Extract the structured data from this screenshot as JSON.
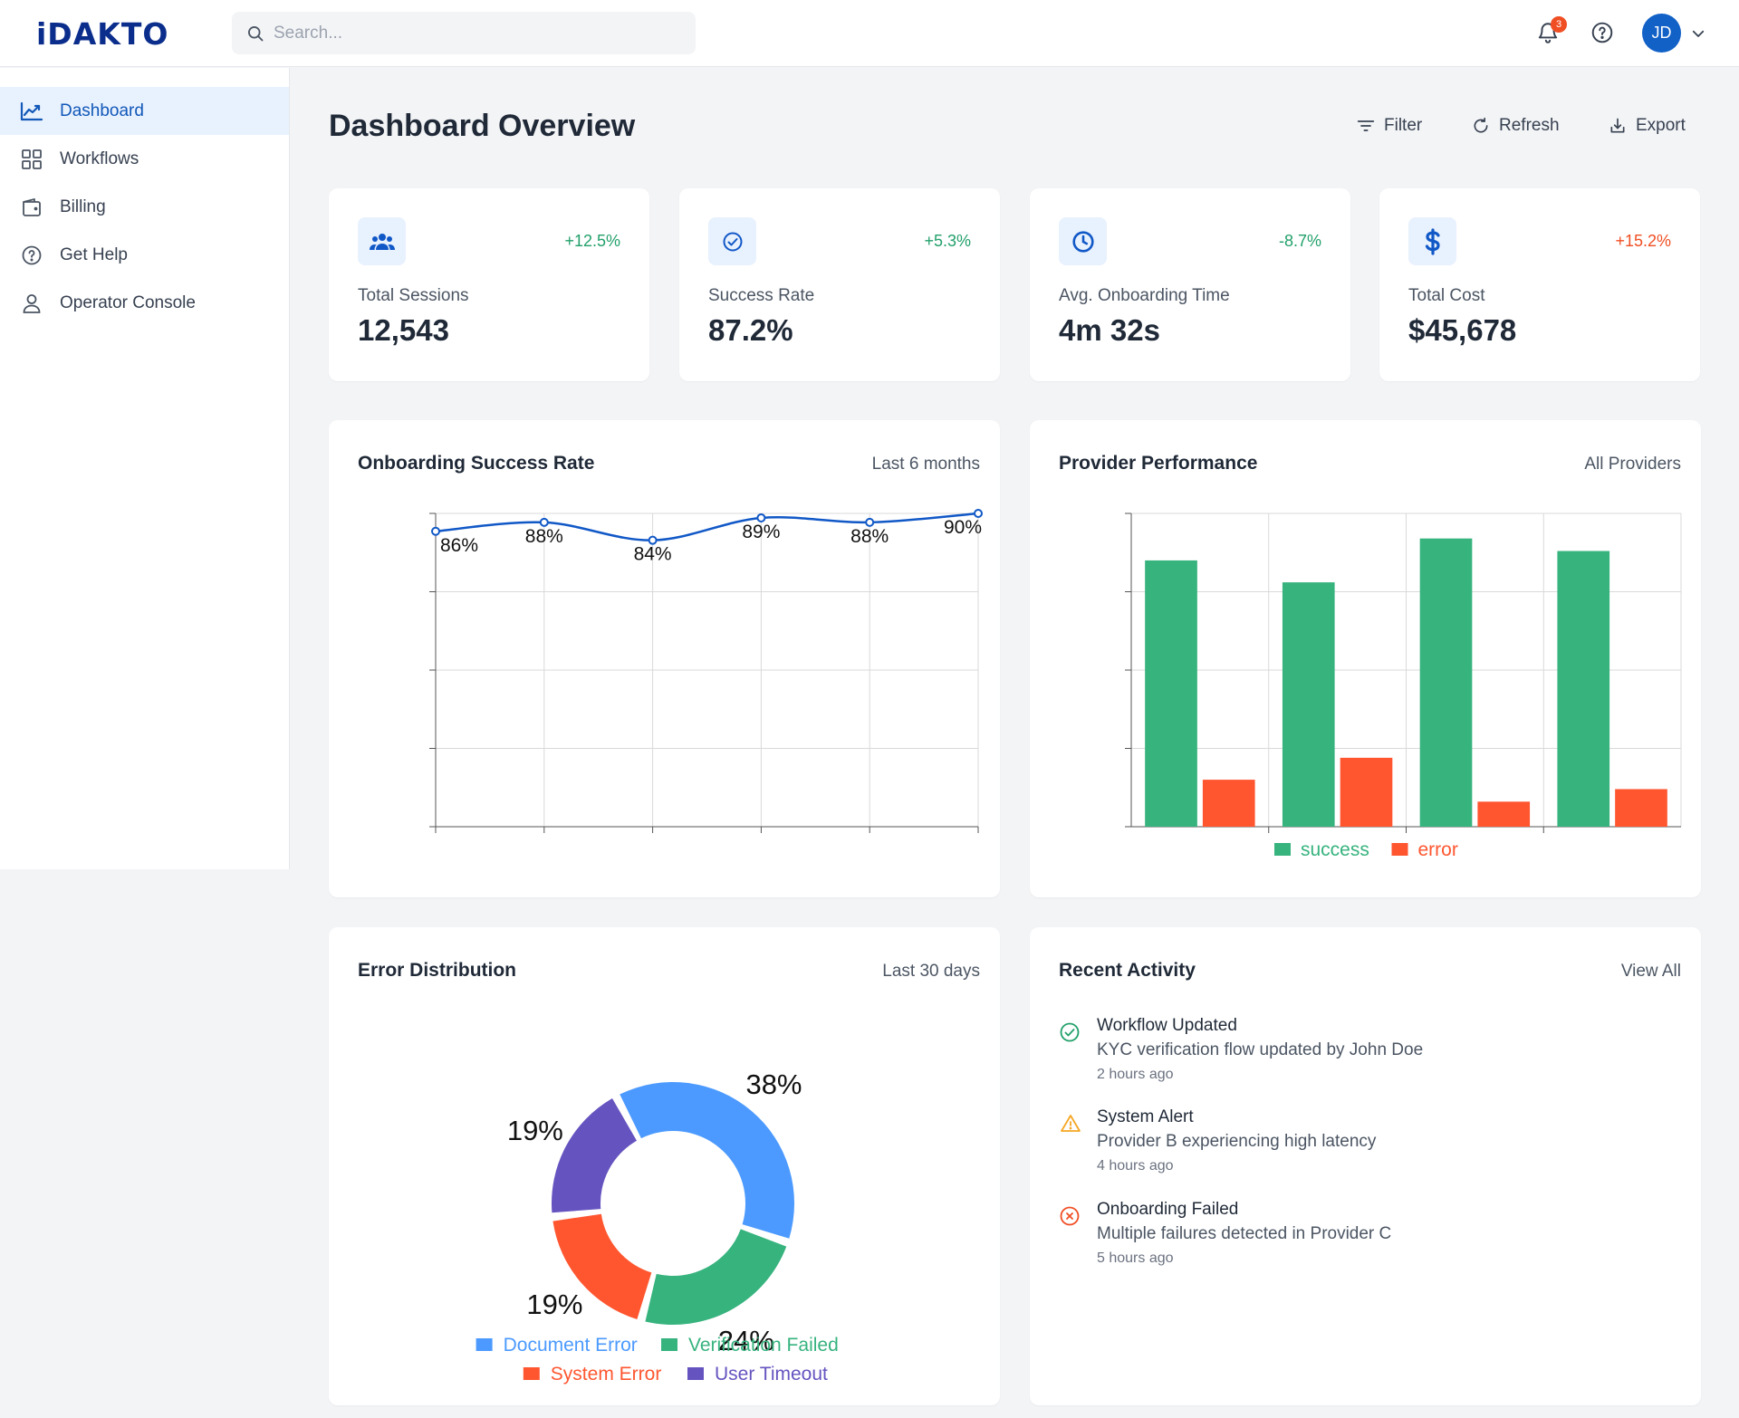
{
  "brand": {
    "logo_text": "iDAKTO"
  },
  "search": {
    "placeholder": "Search..."
  },
  "header": {
    "notification_count": "3",
    "avatar_initials": "JD"
  },
  "sidebar": {
    "items": [
      {
        "label": "Dashboard",
        "icon": "chart-line-icon",
        "active": true
      },
      {
        "label": "Workflows",
        "icon": "grid-icon",
        "active": false
      },
      {
        "label": "Billing",
        "icon": "wallet-icon",
        "active": false
      },
      {
        "label": "Get Help",
        "icon": "help-circle-icon",
        "active": false
      },
      {
        "label": "Operator Console",
        "icon": "user-icon",
        "active": false
      }
    ]
  },
  "page": {
    "title": "Dashboard Overview"
  },
  "toolbar": {
    "filter_label": "Filter",
    "refresh_label": "Refresh",
    "export_label": "Export"
  },
  "stats": [
    {
      "label": "Total Sessions",
      "value": "12,543",
      "change": "+12.5%",
      "icon": "users-icon",
      "change_color": "#22a06b"
    },
    {
      "label": "Success Rate",
      "value": "87.2%",
      "change": "+5.3%",
      "icon": "check-circle-icon",
      "change_color": "#22a06b"
    },
    {
      "label": "Avg. Onboarding Time",
      "value": "4m 32s",
      "change": "-8.7%",
      "icon": "clock-icon",
      "change_color": "#22a06b"
    },
    {
      "label": "Total Cost",
      "value": "$45,678",
      "change": "+15.2%",
      "icon": "dollar-icon",
      "change_color": "#f04e23"
    }
  ],
  "charts": {
    "success": {
      "title": "Onboarding Success Rate",
      "subtitle": "Last 6 months"
    },
    "provider": {
      "title": "Provider Performance",
      "subtitle": "All Providers"
    },
    "errors": {
      "title": "Error Distribution",
      "subtitle": "Last 30 days"
    }
  },
  "chart_data": [
    {
      "type": "line",
      "title": "Onboarding Success Rate",
      "x": [
        1,
        2,
        3,
        4,
        5,
        6
      ],
      "values": [
        86,
        88,
        84,
        89,
        88,
        90
      ],
      "data_labels": [
        "86%",
        "88%",
        "84%",
        "89%",
        "88%",
        "90%"
      ],
      "ylim": [
        20,
        90
      ],
      "grid": true,
      "color": "#1158c7"
    },
    {
      "type": "bar",
      "title": "Provider Performance",
      "categories": [
        "",
        "",
        "",
        ""
      ],
      "series": [
        {
          "name": "success",
          "values": [
            85,
            78,
            92,
            88
          ],
          "color": "#37b37e"
        },
        {
          "name": "error",
          "values": [
            15,
            22,
            8,
            12
          ],
          "color": "#ff5630"
        }
      ],
      "ylim": [
        0,
        100
      ],
      "grid": true,
      "legend": "bottom"
    },
    {
      "type": "pie",
      "title": "Error Distribution",
      "donut": true,
      "categories": [
        "Document Error",
        "Verification Failed",
        "System Error",
        "User Timeout"
      ],
      "values": [
        38,
        24,
        19,
        19
      ],
      "labels": [
        "38%",
        "24%",
        "19%",
        "19%"
      ],
      "colors": [
        "#4c9aff",
        "#37b37e",
        "#ff5630",
        "#6554c0"
      ],
      "legend": "bottom"
    }
  ],
  "activity": {
    "title": "Recent Activity",
    "view_all": "View All",
    "items": [
      {
        "title": "Workflow Updated",
        "desc": "KYC verification flow updated by John Doe",
        "time": "2 hours ago",
        "icon": "check-circle-icon",
        "color": "#22a06b"
      },
      {
        "title": "System Alert",
        "desc": "Provider B experiencing high latency",
        "time": "4 hours ago",
        "icon": "warning-icon",
        "color": "#f5a623"
      },
      {
        "title": "Onboarding Failed",
        "desc": "Multiple failures detected in Provider C",
        "time": "5 hours ago",
        "icon": "x-circle-icon",
        "color": "#f04e23"
      }
    ]
  }
}
